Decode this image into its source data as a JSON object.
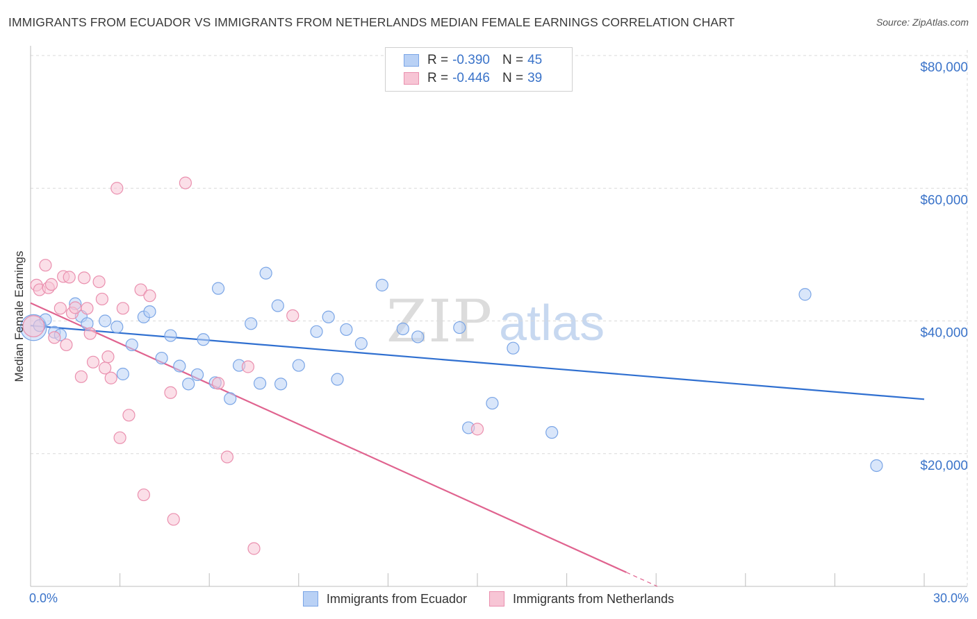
{
  "title": "IMMIGRANTS FROM ECUADOR VS IMMIGRANTS FROM NETHERLANDS MEDIAN FEMALE EARNINGS CORRELATION CHART",
  "source": "Source: ZipAtlas.com",
  "watermark": {
    "zip": "ZIP",
    "atlas": "atlas"
  },
  "colors": {
    "ecuador_fill": "#b9d1f5",
    "ecuador_stroke": "#7aa5e6",
    "ecuador_line": "#2f6fd0",
    "netherlands_fill": "#f7c5d5",
    "netherlands_stroke": "#ea8fae",
    "netherlands_line": "#e0638f",
    "axis_label": "#3a73c9",
    "grid": "#d9d9d9"
  },
  "legend_top": {
    "rows": [
      {
        "r_label": "R =",
        "r_value": "-0.390",
        "n_label": "N =",
        "n_value": "45"
      },
      {
        "r_label": "R =",
        "r_value": "-0.446",
        "n_label": "N =",
        "n_value": "39"
      }
    ]
  },
  "legend_bottom": {
    "series1": "Immigrants from Ecuador",
    "series2": "Immigrants from Netherlands"
  },
  "chart_data": {
    "type": "scatter",
    "title": "IMMIGRANTS FROM ECUADOR VS IMMIGRANTS FROM NETHERLANDS MEDIAN FEMALE EARNINGS CORRELATION CHART",
    "xlabel": "",
    "ylabel": "Median Female Earnings",
    "xlim": [
      0,
      30
    ],
    "ylim": [
      0,
      80000
    ],
    "x_tick_labels": {
      "min": "0.0%",
      "max": "30.0%"
    },
    "y_ticks": [
      {
        "value": 20000,
        "label": "$20,000"
      },
      {
        "value": 40000,
        "label": "$40,000"
      },
      {
        "value": 60000,
        "label": "$60,000"
      },
      {
        "value": 80000,
        "label": "$80,000"
      }
    ],
    "series": [
      {
        "name": "Immigrants from Ecuador",
        "R": -0.39,
        "N": 45,
        "trend": {
          "x0": 0.0,
          "y0": 39300,
          "x1": 30.0,
          "y1": 28200,
          "dash_from": null
        },
        "points": [
          [
            0.1,
            39000,
            2.2
          ],
          [
            0.5,
            40200,
            1
          ],
          [
            0.8,
            38300,
            1
          ],
          [
            1.0,
            37900,
            1
          ],
          [
            1.5,
            42600,
            1
          ],
          [
            1.7,
            40700,
            1
          ],
          [
            1.9,
            39600,
            1
          ],
          [
            2.5,
            40000,
            1
          ],
          [
            2.9,
            39100,
            1
          ],
          [
            3.1,
            32000,
            1
          ],
          [
            3.4,
            36400,
            1
          ],
          [
            3.8,
            40600,
            1
          ],
          [
            4.0,
            41400,
            1
          ],
          [
            4.4,
            34400,
            1
          ],
          [
            4.7,
            37800,
            1
          ],
          [
            5.0,
            33200,
            1
          ],
          [
            5.3,
            30500,
            1
          ],
          [
            5.6,
            31900,
            1
          ],
          [
            5.8,
            37200,
            1
          ],
          [
            6.2,
            30700,
            1
          ],
          [
            6.3,
            44900,
            1
          ],
          [
            6.7,
            28300,
            1
          ],
          [
            7.0,
            33300,
            1
          ],
          [
            7.4,
            39600,
            1
          ],
          [
            7.7,
            30600,
            1
          ],
          [
            7.9,
            47200,
            1
          ],
          [
            8.3,
            42300,
            1
          ],
          [
            8.4,
            30500,
            1
          ],
          [
            9.0,
            33300,
            1
          ],
          [
            9.6,
            38400,
            1
          ],
          [
            10.0,
            40600,
            1
          ],
          [
            10.3,
            31200,
            1
          ],
          [
            10.6,
            38700,
            1
          ],
          [
            11.1,
            36600,
            1
          ],
          [
            11.8,
            45400,
            1
          ],
          [
            12.5,
            38800,
            1
          ],
          [
            13.0,
            37600,
            1
          ],
          [
            14.4,
            39000,
            1
          ],
          [
            14.7,
            23900,
            1
          ],
          [
            15.5,
            27600,
            1
          ],
          [
            16.2,
            35900,
            1
          ],
          [
            17.5,
            23200,
            1
          ],
          [
            26.0,
            44000,
            1
          ],
          [
            28.4,
            18200,
            1
          ],
          [
            0.3,
            39300,
            1
          ]
        ]
      },
      {
        "name": "Immigrants from Netherlands",
        "R": -0.446,
        "N": 39,
        "trend": {
          "x0": 0.0,
          "y0": 42700,
          "x1": 24.0,
          "y1": -6000,
          "dash_from": 20.0
        },
        "points": [
          [
            0.1,
            39200,
            1.8
          ],
          [
            0.2,
            45400,
            1
          ],
          [
            0.3,
            44700,
            1
          ],
          [
            0.5,
            48400,
            1
          ],
          [
            0.6,
            45000,
            1
          ],
          [
            0.7,
            45500,
            1
          ],
          [
            0.8,
            37500,
            1
          ],
          [
            1.0,
            41900,
            1
          ],
          [
            1.1,
            46700,
            1
          ],
          [
            1.2,
            36400,
            1
          ],
          [
            1.3,
            46600,
            1
          ],
          [
            1.4,
            41200,
            1
          ],
          [
            1.5,
            42000,
            1
          ],
          [
            1.7,
            31600,
            1
          ],
          [
            1.8,
            46500,
            1
          ],
          [
            1.9,
            41900,
            1
          ],
          [
            2.0,
            38100,
            1
          ],
          [
            2.1,
            33800,
            1
          ],
          [
            2.3,
            45900,
            1
          ],
          [
            2.4,
            43300,
            1
          ],
          [
            2.5,
            32900,
            1
          ],
          [
            2.6,
            34600,
            1
          ],
          [
            2.7,
            31400,
            1
          ],
          [
            2.9,
            60000,
            1
          ],
          [
            3.0,
            22400,
            1
          ],
          [
            3.1,
            41900,
            1
          ],
          [
            3.3,
            25800,
            1
          ],
          [
            3.7,
            44700,
            1
          ],
          [
            3.8,
            13800,
            1
          ],
          [
            4.0,
            43800,
            1
          ],
          [
            4.7,
            29200,
            1
          ],
          [
            4.8,
            10100,
            1
          ],
          [
            5.2,
            60800,
            1
          ],
          [
            6.3,
            30600,
            1
          ],
          [
            6.6,
            19500,
            1
          ],
          [
            7.3,
            33100,
            1
          ],
          [
            7.5,
            5700,
            1
          ],
          [
            8.8,
            40800,
            1
          ],
          [
            15.0,
            23700,
            1
          ]
        ]
      }
    ]
  }
}
